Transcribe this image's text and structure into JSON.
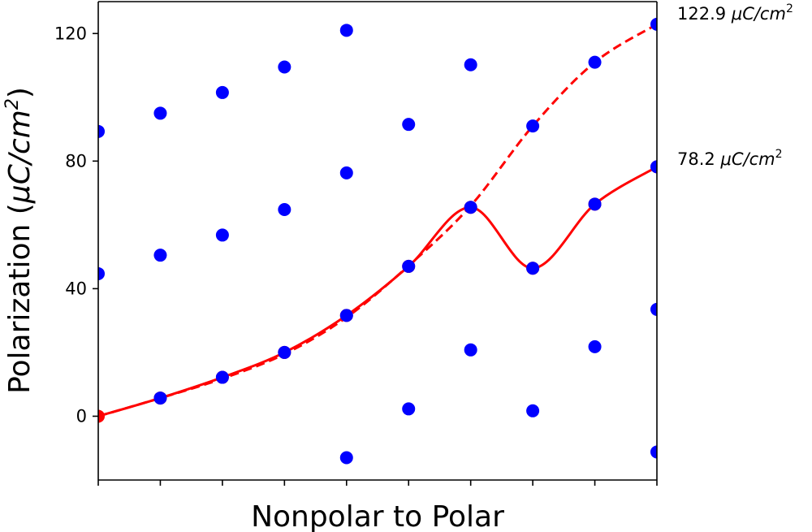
{
  "chart_data": {
    "type": "scatter",
    "title": "",
    "xlabel": "Nonpolar to Polar",
    "ylabel": "Polarization (μC/cm²)",
    "ylabel_parts": {
      "main": "Polarization (",
      "mu": "μ",
      "unit": "C/cm",
      "sup": "2",
      "close": ")"
    },
    "x": [
      0,
      1,
      2,
      3,
      4,
      5,
      6,
      7,
      8,
      9
    ],
    "xlim": [
      0,
      9
    ],
    "ylim": [
      -20,
      130
    ],
    "yticks": [
      0,
      40,
      80,
      120
    ],
    "grid": false,
    "colors": {
      "blue": "#0000ff",
      "red": "#ff0000"
    },
    "blue_points": [
      {
        "x": 0,
        "y": 89.3
      },
      {
        "x": 0,
        "y": 44.7
      },
      {
        "x": 1,
        "y": 95.0
      },
      {
        "x": 1,
        "y": 50.5
      },
      {
        "x": 1,
        "y": 5.7
      },
      {
        "x": 2,
        "y": 101.5
      },
      {
        "x": 2,
        "y": 56.8
      },
      {
        "x": 2,
        "y": 12.2
      },
      {
        "x": 3,
        "y": 109.5
      },
      {
        "x": 3,
        "y": 64.8
      },
      {
        "x": 3,
        "y": 20.0
      },
      {
        "x": 4,
        "y": 121.0
      },
      {
        "x": 4,
        "y": 76.3
      },
      {
        "x": 4,
        "y": 31.6
      },
      {
        "x": 4,
        "y": -13.0
      },
      {
        "x": 5,
        "y": 91.5
      },
      {
        "x": 5,
        "y": 47.0
      },
      {
        "x": 5,
        "y": 2.3
      },
      {
        "x": 6,
        "y": 110.2
      },
      {
        "x": 6,
        "y": 65.5
      },
      {
        "x": 6,
        "y": 20.8
      },
      {
        "x": 7,
        "y": 91.0
      },
      {
        "x": 7,
        "y": 46.4
      },
      {
        "x": 7,
        "y": 1.7
      },
      {
        "x": 8,
        "y": 111.0
      },
      {
        "x": 8,
        "y": 66.5
      },
      {
        "x": 8,
        "y": 21.8
      },
      {
        "x": 9,
        "y": 122.9
      },
      {
        "x": 9,
        "y": 78.2
      },
      {
        "x": 9,
        "y": 33.5
      },
      {
        "x": 9,
        "y": -11.2
      }
    ],
    "series": [
      {
        "style": "solid",
        "color": "#ff0000",
        "x": [
          0,
          1,
          2,
          3,
          4,
          5,
          6,
          7,
          8,
          9
        ],
        "values": [
          0,
          5.7,
          12.2,
          20.0,
          31.6,
          47.0,
          65.5,
          46.4,
          66.5,
          78.2
        ]
      },
      {
        "style": "dashed",
        "color": "#ff0000",
        "x": [
          0,
          1,
          2,
          3,
          4,
          5,
          6,
          7,
          8,
          9
        ],
        "values": [
          0,
          5.7,
          11.8,
          19.5,
          31.0,
          47.2,
          66.0,
          91.0,
          111.0,
          122.9
        ]
      }
    ],
    "annotations": [
      {
        "value": "122.9",
        "unit_mu": "μ",
        "unit_rest": "C/cm",
        "sup": "2",
        "anchor_y": 122.9
      },
      {
        "value": "78.2",
        "unit_mu": "μ",
        "unit_rest": "C/cm",
        "sup": "2",
        "anchor_y": 78.2
      }
    ]
  }
}
